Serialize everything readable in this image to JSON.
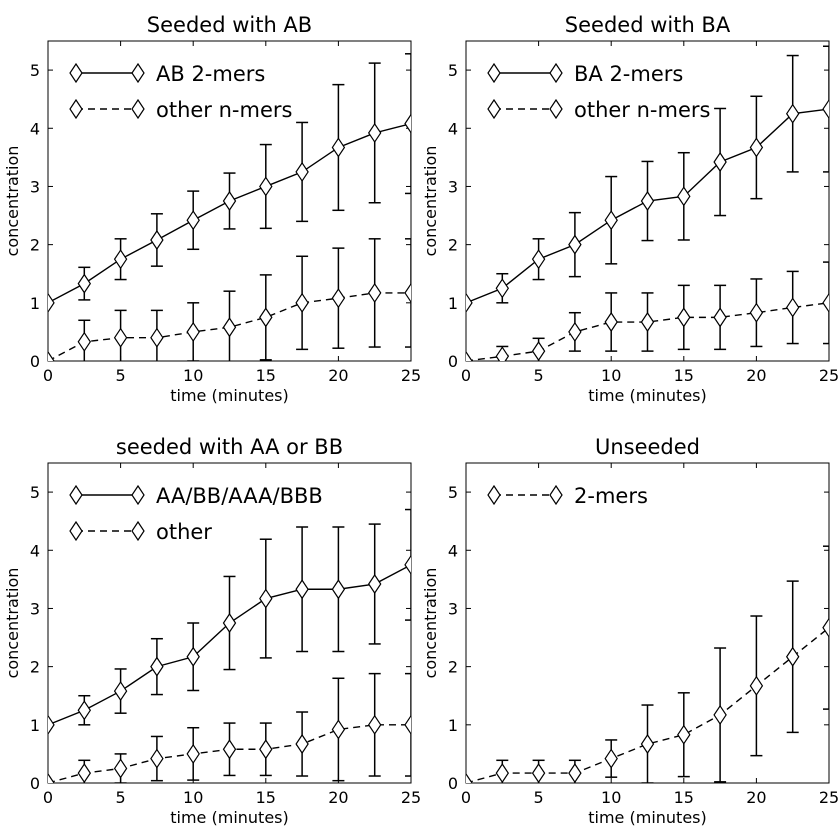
{
  "chart_data": [
    {
      "type": "line",
      "title": "Seeded with AB",
      "xlabel": "time (minutes)",
      "ylabel": "concentration",
      "xlim": [
        0,
        25
      ],
      "ylim": [
        0,
        5.5
      ],
      "xticks": [
        0,
        5,
        10,
        15,
        20,
        25
      ],
      "yticks": [
        0,
        1,
        2,
        3,
        4,
        5
      ],
      "legend": "upper-left",
      "grid": false,
      "series": [
        {
          "name": "AB 2-mers",
          "style": "solid",
          "marker": "thin-diamond",
          "x": [
            0,
            2.5,
            5,
            7.5,
            10,
            12.5,
            15,
            17.5,
            20,
            22.5,
            25
          ],
          "y": [
            1.0,
            1.33,
            1.75,
            2.08,
            2.42,
            2.75,
            3.0,
            3.25,
            3.67,
            3.92,
            4.08
          ],
          "err": [
            0,
            0.28,
            0.35,
            0.45,
            0.5,
            0.48,
            0.72,
            0.85,
            1.08,
            1.2,
            1.2
          ]
        },
        {
          "name": "other n-mers",
          "style": "dashed",
          "marker": "thin-diamond",
          "x": [
            0,
            2.5,
            5,
            7.5,
            10,
            12.5,
            15,
            17.5,
            20,
            22.5,
            25
          ],
          "y": [
            0,
            0.33,
            0.4,
            0.4,
            0.5,
            0.58,
            0.75,
            1.0,
            1.08,
            1.17,
            1.17
          ],
          "err": [
            0,
            0.37,
            0.47,
            0.47,
            0.5,
            0.62,
            0.73,
            0.8,
            0.86,
            0.93,
            0.93
          ]
        }
      ]
    },
    {
      "type": "line",
      "title": "Seeded with BA",
      "xlabel": "time (minutes)",
      "ylabel": "concentration",
      "xlim": [
        0,
        25
      ],
      "ylim": [
        0,
        5.5
      ],
      "xticks": [
        0,
        5,
        10,
        15,
        20,
        25
      ],
      "yticks": [
        0,
        1,
        2,
        3,
        4,
        5
      ],
      "legend": "upper-left",
      "grid": false,
      "series": [
        {
          "name": "BA 2-mers",
          "style": "solid",
          "marker": "thin-diamond",
          "x": [
            0,
            2.5,
            5,
            7.5,
            10,
            12.5,
            15,
            17.5,
            20,
            22.5,
            25
          ],
          "y": [
            1.0,
            1.25,
            1.75,
            2.0,
            2.42,
            2.75,
            2.83,
            3.42,
            3.67,
            4.25,
            4.33
          ],
          "err": [
            0,
            0.25,
            0.35,
            0.55,
            0.75,
            0.68,
            0.75,
            0.92,
            0.88,
            1.0,
            1.08
          ]
        },
        {
          "name": "other n-mers",
          "style": "dashed",
          "marker": "thin-diamond",
          "x": [
            0,
            2.5,
            5,
            7.5,
            10,
            12.5,
            15,
            17.5,
            20,
            22.5,
            25
          ],
          "y": [
            0,
            0.08,
            0.17,
            0.5,
            0.67,
            0.67,
            0.75,
            0.75,
            0.83,
            0.92,
            1.0
          ],
          "err": [
            0,
            0.17,
            0.22,
            0.33,
            0.5,
            0.5,
            0.55,
            0.55,
            0.58,
            0.62,
            0.7
          ]
        }
      ]
    },
    {
      "type": "line",
      "title": "seeded with AA or BB",
      "xlabel": "time (minutes)",
      "ylabel": "concentration",
      "xlim": [
        0,
        25
      ],
      "ylim": [
        0,
        5.5
      ],
      "xticks": [
        0,
        5,
        10,
        15,
        20,
        25
      ],
      "yticks": [
        0,
        1,
        2,
        3,
        4,
        5
      ],
      "legend": "upper-left",
      "grid": false,
      "series": [
        {
          "name": "AA/BB/AAA/BBB",
          "style": "solid",
          "marker": "thin-diamond",
          "x": [
            0,
            2.5,
            5,
            7.5,
            10,
            12.5,
            15,
            17.5,
            20,
            22.5,
            25
          ],
          "y": [
            1.0,
            1.25,
            1.58,
            2.0,
            2.17,
            2.75,
            3.17,
            3.33,
            3.33,
            3.42,
            3.75
          ],
          "err": [
            0,
            0.25,
            0.38,
            0.48,
            0.58,
            0.8,
            1.02,
            1.07,
            1.07,
            1.03,
            0.95
          ]
        },
        {
          "name": "other",
          "style": "dashed",
          "marker": "thin-diamond",
          "x": [
            0,
            2.5,
            5,
            7.5,
            10,
            12.5,
            15,
            17.5,
            20,
            22.5,
            25
          ],
          "y": [
            0,
            0.17,
            0.25,
            0.42,
            0.5,
            0.58,
            0.58,
            0.67,
            0.92,
            1.0,
            1.0
          ],
          "err": [
            0,
            0.22,
            0.25,
            0.38,
            0.45,
            0.45,
            0.45,
            0.55,
            0.88,
            0.88,
            0.88
          ]
        }
      ]
    },
    {
      "type": "line",
      "title": "Unseeded",
      "xlabel": "time (minutes)",
      "ylabel": "concentration",
      "xlim": [
        0,
        25
      ],
      "ylim": [
        0,
        5.5
      ],
      "xticks": [
        0,
        5,
        10,
        15,
        20,
        25
      ],
      "yticks": [
        0,
        1,
        2,
        3,
        4,
        5
      ],
      "legend": "upper-left",
      "grid": false,
      "series": [
        {
          "name": "2-mers",
          "style": "dashed",
          "marker": "thin-diamond",
          "x": [
            0,
            2.5,
            5,
            7.5,
            10,
            12.5,
            15,
            17.5,
            20,
            22.5,
            25
          ],
          "y": [
            0,
            0.17,
            0.17,
            0.17,
            0.42,
            0.67,
            0.83,
            1.17,
            1.67,
            2.17,
            2.67
          ],
          "err": [
            0,
            0.22,
            0.22,
            0.22,
            0.32,
            0.67,
            0.72,
            1.15,
            1.2,
            1.3,
            1.4
          ]
        }
      ]
    }
  ]
}
